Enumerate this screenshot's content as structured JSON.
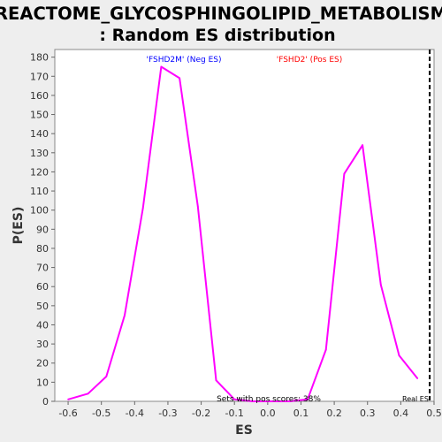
{
  "chart_data": {
    "type": "line",
    "title_line1": "REACTOME_GLYCOSPHINGOLIPID_METABOLISM",
    "title_line2": ": Random ES distribution",
    "xlabel": "ES",
    "ylabel": "P(ES)",
    "xlim": [
      -0.64,
      0.5
    ],
    "ylim": [
      0,
      184
    ],
    "x_ticks": [
      -0.6,
      -0.5,
      -0.4,
      -0.3,
      -0.2,
      -0.1,
      0.0,
      0.1,
      0.2,
      0.3,
      0.4,
      0.5
    ],
    "x_tick_labels": [
      "-0.6",
      "-0.5",
      "-0.4",
      "-0.3",
      "-0.2",
      "-0.1",
      "0.0",
      "0.1",
      "0.2",
      "0.3",
      "0.4",
      "0.5"
    ],
    "y_ticks": [
      0,
      10,
      20,
      30,
      40,
      50,
      60,
      70,
      80,
      90,
      100,
      110,
      120,
      130,
      140,
      150,
      160,
      170,
      180
    ],
    "series": [
      {
        "color": "#ff00ff",
        "x": [
          -0.6,
          -0.54,
          -0.485,
          -0.43,
          -0.375,
          -0.32,
          -0.265,
          -0.21,
          -0.155,
          -0.1,
          -0.045,
          0.01,
          0.065,
          0.12,
          0.175,
          0.23,
          0.285,
          0.34,
          0.395,
          0.45
        ],
        "y": [
          1,
          4,
          13,
          45,
          101,
          175,
          169,
          102,
          11,
          1,
          0,
          0,
          0,
          1,
          27,
          119,
          134,
          61,
          24,
          12
        ]
      }
    ],
    "real_es_line": {
      "x": 0.487,
      "label": "Real ES",
      "style": "dashed",
      "color": "#000000"
    },
    "annotations": [
      {
        "text": "'FSHD2M' (Neg ES)",
        "color": "#0000ff"
      },
      {
        "text": "'FSHD2' (Pos ES)",
        "color": "#ff0000"
      },
      {
        "text": "Sets with pos scores: 38%",
        "color": "#000000"
      }
    ],
    "grid": false,
    "background": "#ffffff"
  }
}
